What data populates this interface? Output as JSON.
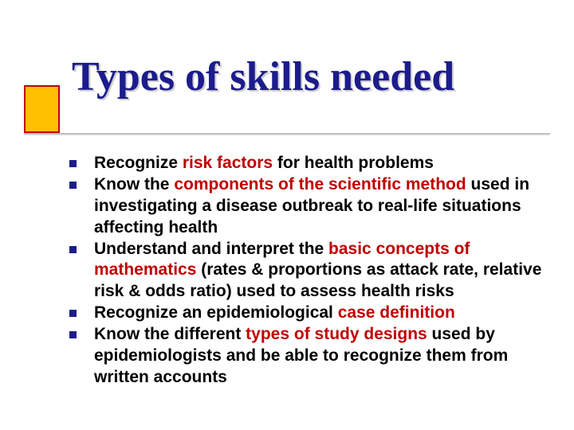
{
  "slide": {
    "title": "Types of skills needed",
    "title_color": "#1c1c8c",
    "title_fontsize": 52,
    "title_font": "Georgia",
    "accent_fill": "#ffc000",
    "accent_border": "#c00000",
    "bullet_color": "#1c1c8c",
    "highlight_color": "#c00000",
    "body_fontsize": 21,
    "body_font": "Verdana",
    "background": "#ffffff",
    "bullets": [
      {
        "pre": "Recognize ",
        "hl": "risk factors",
        "post": " for health problems"
      },
      {
        "pre": "Know the ",
        "hl": "components of the scientific method",
        "post": " used in investigating a disease outbreak to real-life situations affecting health"
      },
      {
        "pre": "Understand and interpret the ",
        "hl": "basic concepts of mathematics",
        "post": " (rates & proportions as attack rate, relative risk & odds ratio) used to assess health risks"
      },
      {
        "pre": "Recognize an epidemiological ",
        "hl": "case definition",
        "post": ""
      },
      {
        "pre": "Know the different ",
        "hl": "types of study designs",
        "post": " used by epidemiologists and be able to recognize them from written accounts"
      }
    ]
  }
}
